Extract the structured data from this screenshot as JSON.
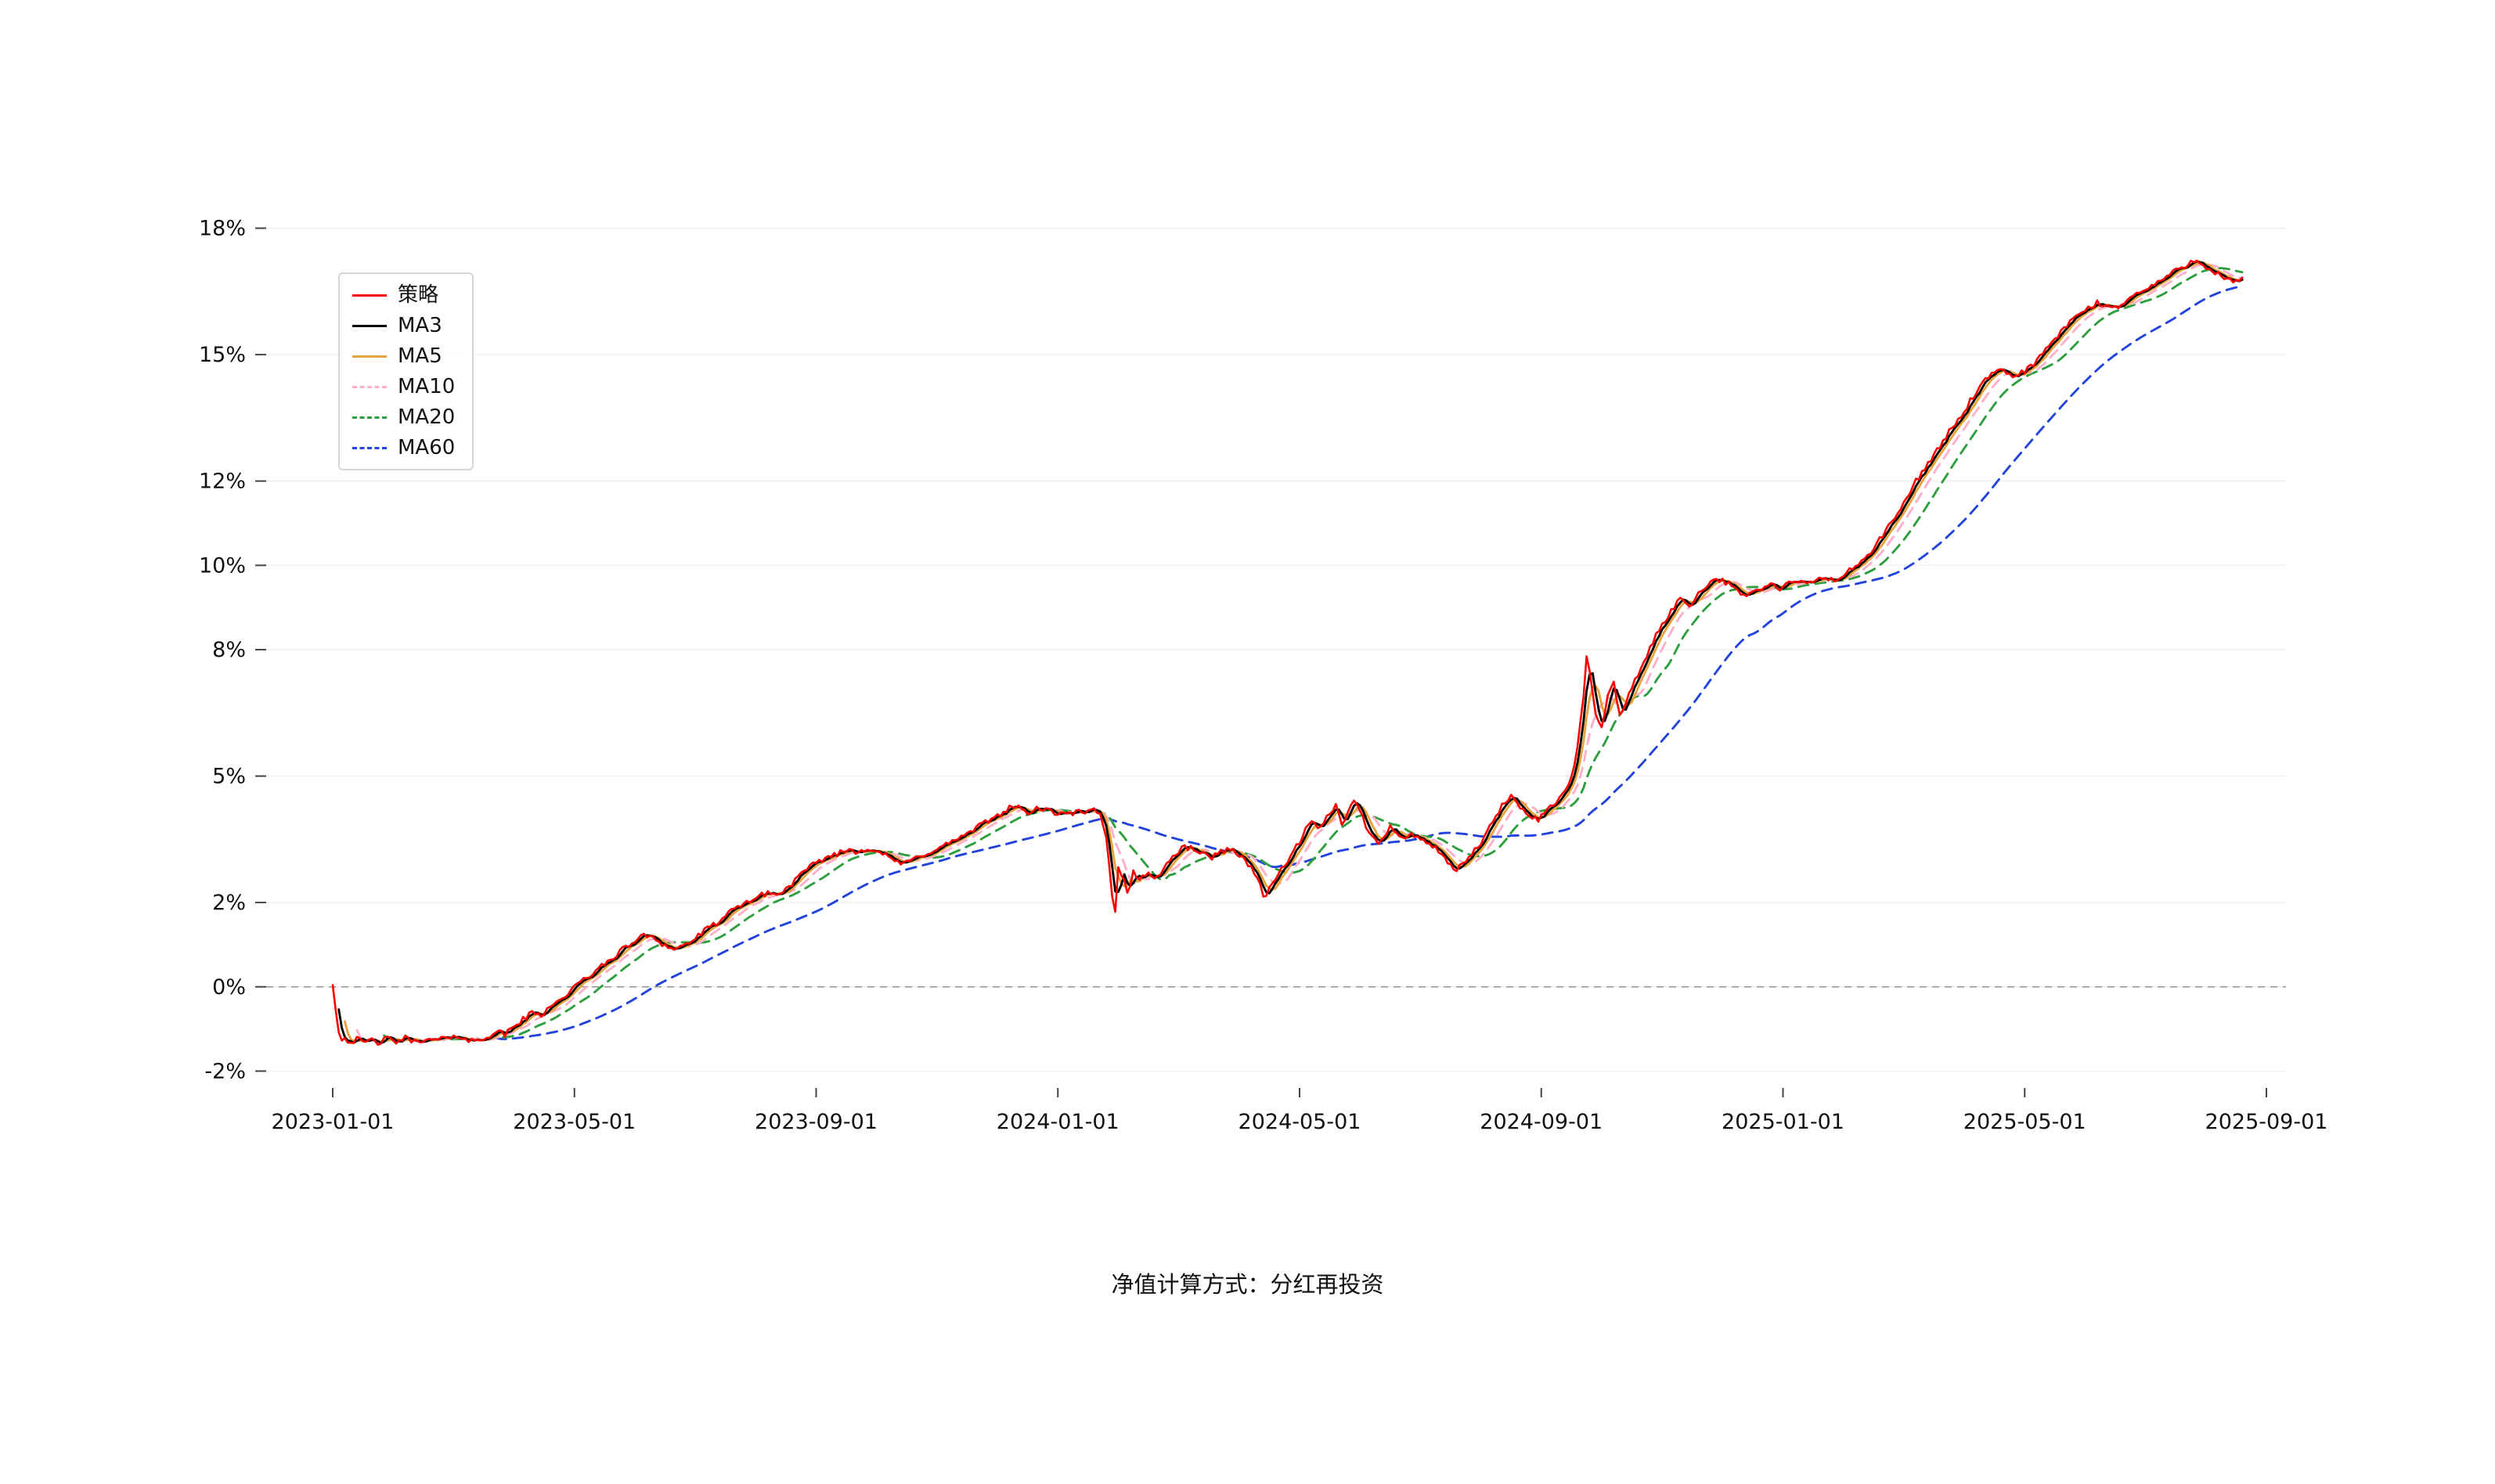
{
  "caption": "净值计算方式：分红再投资",
  "chart_data": {
    "type": "line",
    "title": "",
    "xlabel": "",
    "ylabel": "",
    "legend_position": "top-left",
    "grid": "horizontal-faint",
    "zero_line_dashed": true,
    "x_unit": "months_since_2023-01-01",
    "x_range": [
      0,
      32
    ],
    "x_ticks": [
      0,
      4,
      8,
      12,
      16,
      20,
      24,
      28,
      32
    ],
    "x_tick_labels": [
      "2023-01-01",
      "2023-05-01",
      "2023-09-01",
      "2024-01-01",
      "2024-05-01",
      "2024-09-01",
      "2025-01-01",
      "2025-05-01",
      "2025-09-01"
    ],
    "y_ticks": [
      -2,
      0,
      2,
      5,
      8,
      10,
      12,
      15,
      18
    ],
    "y_tick_suffix": "%",
    "ylim": [
      -2.4,
      18.4
    ],
    "colors": {
      "strategy": "#ff0000",
      "ma3": "#000000",
      "ma5": "#e8a33c",
      "ma10": "#ffb0c8",
      "ma20": "#2e9e3e",
      "ma60": "#2244dd",
      "zero_line": "#999999",
      "gridline": "#f0f0f0",
      "tick_text": "#111111"
    },
    "series": [
      {
        "key": "strategy",
        "name": "策略",
        "color": "#ff0000",
        "dash": "solid",
        "role": "base"
      },
      {
        "key": "ma3",
        "name": "MA3",
        "color": "#000000",
        "dash": "solid",
        "role": "ma",
        "window": 3
      },
      {
        "key": "ma5",
        "name": "MA5",
        "color": "#e8a33c",
        "dash": "solid",
        "role": "ma",
        "window": 5
      },
      {
        "key": "ma10",
        "name": "MA10",
        "color": "#ffb0c8",
        "dash": "dashed",
        "role": "ma",
        "window": 10
      },
      {
        "key": "ma20",
        "name": "MA20",
        "color": "#2e9e3e",
        "dash": "dashed",
        "role": "ma",
        "window": 20
      },
      {
        "key": "ma60",
        "name": "MA60",
        "color": "#2244dd",
        "dash": "dashed",
        "role": "ma",
        "window": 60
      }
    ],
    "noise_amplitude": 0.07,
    "noise_seed": 42,
    "base_series": {
      "name": "策略",
      "x_unit": "months_since_2023-01-01",
      "y_unit": "percent_return",
      "points": [
        [
          0.0,
          0.05
        ],
        [
          0.05,
          -0.55
        ],
        [
          0.12,
          -1.3
        ],
        [
          0.2,
          -1.2
        ],
        [
          0.3,
          -1.32
        ],
        [
          0.4,
          -1.24
        ],
        [
          0.5,
          -1.34
        ],
        [
          0.62,
          -1.26
        ],
        [
          0.75,
          -1.32
        ],
        [
          0.9,
          -1.24
        ],
        [
          1.05,
          -1.3
        ],
        [
          1.2,
          -1.22
        ],
        [
          1.35,
          -1.3
        ],
        [
          1.5,
          -1.24
        ],
        [
          1.65,
          -1.3
        ],
        [
          1.8,
          -1.2
        ],
        [
          1.95,
          -1.26
        ],
        [
          2.1,
          -1.16
        ],
        [
          2.25,
          -1.26
        ],
        [
          2.4,
          -1.3
        ],
        [
          2.55,
          -1.18
        ],
        [
          2.7,
          -1.06
        ],
        [
          2.85,
          -1.14
        ],
        [
          3.0,
          -0.92
        ],
        [
          3.15,
          -0.78
        ],
        [
          3.3,
          -0.62
        ],
        [
          3.45,
          -0.68
        ],
        [
          3.6,
          -0.42
        ],
        [
          3.75,
          -0.34
        ],
        [
          3.9,
          -0.14
        ],
        [
          4.05,
          0.04
        ],
        [
          4.2,
          0.22
        ],
        [
          4.35,
          0.38
        ],
        [
          4.5,
          0.52
        ],
        [
          4.65,
          0.72
        ],
        [
          4.8,
          0.88
        ],
        [
          4.95,
          1.04
        ],
        [
          5.1,
          1.18
        ],
        [
          5.25,
          1.24
        ],
        [
          5.4,
          1.08
        ],
        [
          5.55,
          0.94
        ],
        [
          5.7,
          0.9
        ],
        [
          5.85,
          1.02
        ],
        [
          6.0,
          1.14
        ],
        [
          6.15,
          1.32
        ],
        [
          6.3,
          1.46
        ],
        [
          6.45,
          1.62
        ],
        [
          6.6,
          1.78
        ],
        [
          6.75,
          1.92
        ],
        [
          6.9,
          2.06
        ],
        [
          7.05,
          2.12
        ],
        [
          7.2,
          2.26
        ],
        [
          7.35,
          2.16
        ],
        [
          7.5,
          2.32
        ],
        [
          7.65,
          2.52
        ],
        [
          7.8,
          2.72
        ],
        [
          7.95,
          2.88
        ],
        [
          8.1,
          3.02
        ],
        [
          8.25,
          3.12
        ],
        [
          8.4,
          3.18
        ],
        [
          8.55,
          3.26
        ],
        [
          8.7,
          3.2
        ],
        [
          8.85,
          3.3
        ],
        [
          9.0,
          3.24
        ],
        [
          9.15,
          3.1
        ],
        [
          9.3,
          3.0
        ],
        [
          9.45,
          2.9
        ],
        [
          9.6,
          3.02
        ],
        [
          9.75,
          3.12
        ],
        [
          9.9,
          3.22
        ],
        [
          10.05,
          3.28
        ],
        [
          10.2,
          3.42
        ],
        [
          10.35,
          3.52
        ],
        [
          10.5,
          3.62
        ],
        [
          10.65,
          3.76
        ],
        [
          10.8,
          3.9
        ],
        [
          10.95,
          4.02
        ],
        [
          11.1,
          4.16
        ],
        [
          11.25,
          4.3
        ],
        [
          11.4,
          4.2
        ],
        [
          11.55,
          4.12
        ],
        [
          11.7,
          4.26
        ],
        [
          11.85,
          4.16
        ],
        [
          12.0,
          4.12
        ],
        [
          12.15,
          4.06
        ],
        [
          12.3,
          4.16
        ],
        [
          12.45,
          4.1
        ],
        [
          12.6,
          4.2
        ],
        [
          12.72,
          4.04
        ],
        [
          12.8,
          3.55
        ],
        [
          12.88,
          2.45
        ],
        [
          12.94,
          1.62
        ],
        [
          13.0,
          2.85
        ],
        [
          13.08,
          2.6
        ],
        [
          13.16,
          2.15
        ],
        [
          13.25,
          2.8
        ],
        [
          13.35,
          2.5
        ],
        [
          13.5,
          2.72
        ],
        [
          13.65,
          2.58
        ],
        [
          13.8,
          2.92
        ],
        [
          13.95,
          3.15
        ],
        [
          14.1,
          3.32
        ],
        [
          14.25,
          3.28
        ],
        [
          14.4,
          3.14
        ],
        [
          14.55,
          3.08
        ],
        [
          14.7,
          3.2
        ],
        [
          14.85,
          3.3
        ],
        [
          15.0,
          3.12
        ],
        [
          15.15,
          2.92
        ],
        [
          15.3,
          2.62
        ],
        [
          15.42,
          2.1
        ],
        [
          15.55,
          2.42
        ],
        [
          15.7,
          2.8
        ],
        [
          15.85,
          3.1
        ],
        [
          16.0,
          3.42
        ],
        [
          16.1,
          3.72
        ],
        [
          16.2,
          3.96
        ],
        [
          16.3,
          3.7
        ],
        [
          16.4,
          3.86
        ],
        [
          16.5,
          4.12
        ],
        [
          16.6,
          4.3
        ],
        [
          16.7,
          3.9
        ],
        [
          16.8,
          4.12
        ],
        [
          16.9,
          4.4
        ],
        [
          17.0,
          4.18
        ],
        [
          17.1,
          3.82
        ],
        [
          17.2,
          3.6
        ],
        [
          17.3,
          3.42
        ],
        [
          17.4,
          3.62
        ],
        [
          17.5,
          3.8
        ],
        [
          17.6,
          3.66
        ],
        [
          17.7,
          3.5
        ],
        [
          17.85,
          3.6
        ],
        [
          18.0,
          3.54
        ],
        [
          18.15,
          3.4
        ],
        [
          18.3,
          3.2
        ],
        [
          18.45,
          2.92
        ],
        [
          18.6,
          2.76
        ],
        [
          18.75,
          3.0
        ],
        [
          18.9,
          3.22
        ],
        [
          19.05,
          3.52
        ],
        [
          19.2,
          3.9
        ],
        [
          19.35,
          4.3
        ],
        [
          19.5,
          4.5
        ],
        [
          19.65,
          4.26
        ],
        [
          19.8,
          4.1
        ],
        [
          19.95,
          3.96
        ],
        [
          20.1,
          4.2
        ],
        [
          20.25,
          4.42
        ],
        [
          20.4,
          4.62
        ],
        [
          20.55,
          5.2
        ],
        [
          20.68,
          6.6
        ],
        [
          20.76,
          7.95
        ],
        [
          20.84,
          7.1
        ],
        [
          20.92,
          6.3
        ],
        [
          21.0,
          6.12
        ],
        [
          21.1,
          6.9
        ],
        [
          21.2,
          7.3
        ],
        [
          21.3,
          6.4
        ],
        [
          21.4,
          6.72
        ],
        [
          21.5,
          7.1
        ],
        [
          21.6,
          7.42
        ],
        [
          21.7,
          7.72
        ],
        [
          21.8,
          8.02
        ],
        [
          21.9,
          8.32
        ],
        [
          22.0,
          8.6
        ],
        [
          22.15,
          8.92
        ],
        [
          22.3,
          9.2
        ],
        [
          22.45,
          9.06
        ],
        [
          22.6,
          9.32
        ],
        [
          22.75,
          9.56
        ],
        [
          22.9,
          9.7
        ],
        [
          23.05,
          9.6
        ],
        [
          23.2,
          9.42
        ],
        [
          23.35,
          9.3
        ],
        [
          23.5,
          9.36
        ],
        [
          23.65,
          9.46
        ],
        [
          23.8,
          9.52
        ],
        [
          23.95,
          9.46
        ],
        [
          24.1,
          9.56
        ],
        [
          24.25,
          9.62
        ],
        [
          24.4,
          9.54
        ],
        [
          24.55,
          9.66
        ],
        [
          24.7,
          9.72
        ],
        [
          24.85,
          9.62
        ],
        [
          25.0,
          9.76
        ],
        [
          25.15,
          9.92
        ],
        [
          25.3,
          10.1
        ],
        [
          25.45,
          10.32
        ],
        [
          25.6,
          10.6
        ],
        [
          25.75,
          10.92
        ],
        [
          25.9,
          11.22
        ],
        [
          26.05,
          11.6
        ],
        [
          26.2,
          12.0
        ],
        [
          26.35,
          12.32
        ],
        [
          26.5,
          12.62
        ],
        [
          26.65,
          12.92
        ],
        [
          26.8,
          13.3
        ],
        [
          26.95,
          13.52
        ],
        [
          27.1,
          13.9
        ],
        [
          27.25,
          14.2
        ],
        [
          27.4,
          14.46
        ],
        [
          27.55,
          14.62
        ],
        [
          27.7,
          14.56
        ],
        [
          27.85,
          14.5
        ],
        [
          28.0,
          14.62
        ],
        [
          28.15,
          14.78
        ],
        [
          28.3,
          15.02
        ],
        [
          28.45,
          15.3
        ],
        [
          28.6,
          15.52
        ],
        [
          28.75,
          15.76
        ],
        [
          28.9,
          15.96
        ],
        [
          29.05,
          16.1
        ],
        [
          29.2,
          16.22
        ],
        [
          29.35,
          16.16
        ],
        [
          29.5,
          16.1
        ],
        [
          29.65,
          16.26
        ],
        [
          29.8,
          16.4
        ],
        [
          29.95,
          16.5
        ],
        [
          30.1,
          16.62
        ],
        [
          30.25,
          16.76
        ],
        [
          30.4,
          16.9
        ],
        [
          30.55,
          17.02
        ],
        [
          30.7,
          17.16
        ],
        [
          30.85,
          17.26
        ],
        [
          31.0,
          17.1
        ],
        [
          31.15,
          16.95
        ],
        [
          31.3,
          16.82
        ],
        [
          31.45,
          16.7
        ],
        [
          31.6,
          16.78
        ]
      ]
    }
  }
}
